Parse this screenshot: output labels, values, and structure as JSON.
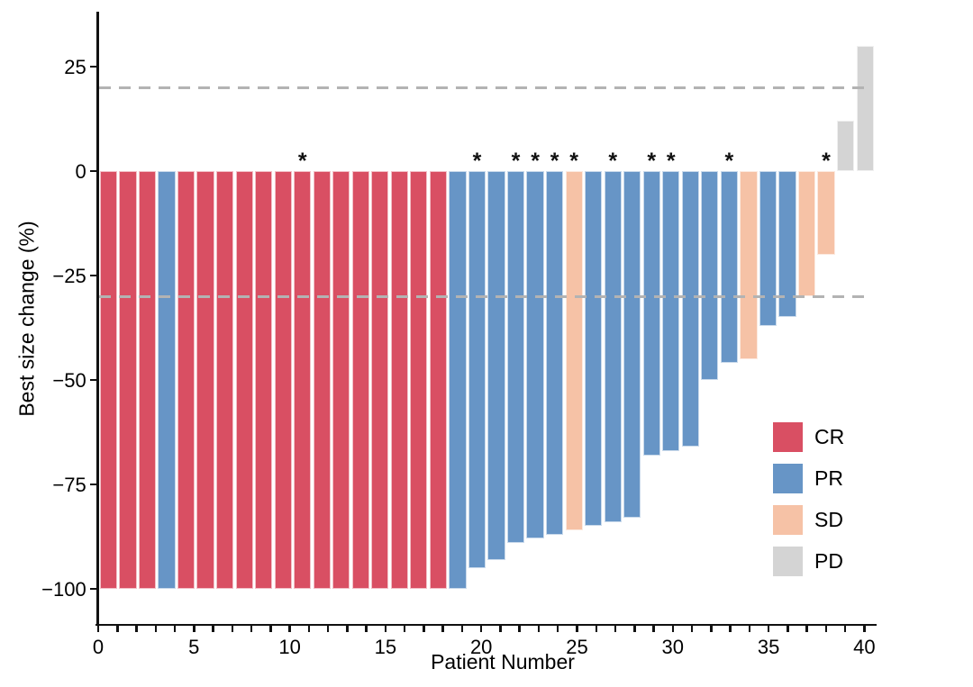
{
  "figure": {
    "background": "#FFFFFF"
  },
  "chart_data": {
    "type": "bar",
    "subtype": "waterfall",
    "title": "",
    "xlabel": "Patient Number",
    "ylabel": "Best size change (%)",
    "x_ticks_labeled": [
      0,
      5,
      10,
      15,
      20,
      25,
      30,
      35,
      40
    ],
    "x_minor_tick_step": 1,
    "x_range": [
      0,
      40
    ],
    "y_ticks": [
      25,
      0,
      -25,
      -50,
      -75,
      -100
    ],
    "ylim": [
      -108,
      38
    ],
    "grid": false,
    "reference_lines": {
      "values": [
        20,
        -30
      ],
      "style": "dashed",
      "color": "#B3B3B3"
    },
    "annotation_symbol": "*",
    "categories": [
      1,
      2,
      3,
      4,
      5,
      6,
      7,
      8,
      9,
      10,
      11,
      12,
      13,
      14,
      15,
      16,
      17,
      18,
      19,
      20,
      21,
      22,
      23,
      24,
      25,
      26,
      27,
      28,
      29,
      30,
      31,
      32,
      33,
      34,
      35,
      36,
      37,
      38,
      39,
      40
    ],
    "series": [
      {
        "name": "Best size change (%)",
        "values": [
          -100,
          -100,
          -100,
          -100,
          -100,
          -100,
          -100,
          -100,
          -100,
          -100,
          -100,
          -100,
          -100,
          -100,
          -100,
          -100,
          -100,
          -100,
          -100,
          -95,
          -93,
          -89,
          -88,
          -87,
          -86,
          -85,
          -84,
          -83,
          -68,
          -67,
          -66,
          -50,
          -46,
          -45,
          -37,
          -35,
          -30,
          -20,
          12,
          30
        ]
      }
    ],
    "responses": [
      "CR",
      "CR",
      "CR",
      "PR",
      "CR",
      "CR",
      "CR",
      "CR",
      "CR",
      "CR",
      "CR",
      "CR",
      "CR",
      "CR",
      "CR",
      "CR",
      "CR",
      "CR",
      "PR",
      "PR",
      "PR",
      "PR",
      "PR",
      "PR",
      "SD",
      "PR",
      "PR",
      "PR",
      "PR",
      "PR",
      "PR",
      "PR",
      "PR",
      "SD",
      "PR",
      "PR",
      "SD",
      "SD",
      "PD",
      "PD"
    ],
    "starred_patients": [
      11,
      20,
      22,
      23,
      24,
      25,
      27,
      29,
      30,
      33,
      38
    ],
    "colors": {
      "CR": "#D94F63",
      "PR": "#6795C6",
      "SD": "#F6C2A6",
      "PD": "#D4D4D4"
    },
    "legend": {
      "position": "inside-bottom-right",
      "entries": [
        {
          "label": "CR",
          "color": "#D94F63"
        },
        {
          "label": "PR",
          "color": "#6795C6"
        },
        {
          "label": "SD",
          "color": "#F6C2A6"
        },
        {
          "label": "PD",
          "color": "#D4D4D4"
        }
      ]
    }
  }
}
